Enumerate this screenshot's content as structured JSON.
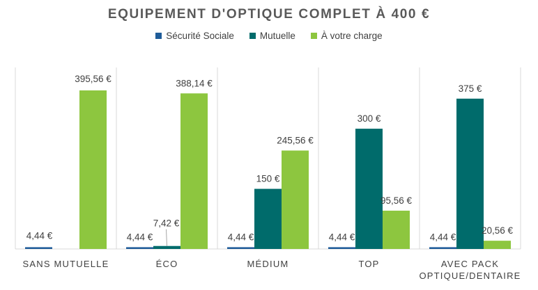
{
  "chart_data": {
    "type": "bar",
    "title": "EQUIPEMENT D'OPTIQUE COMPLET À 400 €",
    "categories": [
      "SANS MUTUELLE",
      "ÉCO",
      "MÉDIUM",
      "TOP",
      "AVEC PACK OPTIQUE/DENTAIRE"
    ],
    "category_lines": [
      [
        "SANS MUTUELLE"
      ],
      [
        "ÉCO"
      ],
      [
        "MÉDIUM"
      ],
      [
        "TOP"
      ],
      [
        "AVEC PACK",
        "OPTIQUE/DENTAIRE"
      ]
    ],
    "series": [
      {
        "name": "Sécurité Sociale",
        "color": "#1f5c99",
        "values": [
          4.44,
          4.44,
          4.44,
          4.44,
          4.44
        ],
        "labels": [
          "4,44 €",
          "4,44 €",
          "4,44 €",
          "4,44 €",
          "4,44 €"
        ]
      },
      {
        "name": "Mutuelle",
        "color": "#006b6b",
        "values": [
          0,
          7.42,
          150,
          300,
          375
        ],
        "labels": [
          "",
          "7,42 €",
          "150 €",
          "300 €",
          "375 €"
        ]
      },
      {
        "name": "À votre charge",
        "color": "#8dc63f",
        "values": [
          395.56,
          388.14,
          245.56,
          95.56,
          20.56
        ],
        "labels": [
          "395,56 €",
          "388,14 €",
          "245,56 €",
          "95,56 €",
          "20,56 €"
        ]
      }
    ],
    "ylim": [
      0,
      420
    ],
    "grid": false,
    "legend_position": "top"
  }
}
